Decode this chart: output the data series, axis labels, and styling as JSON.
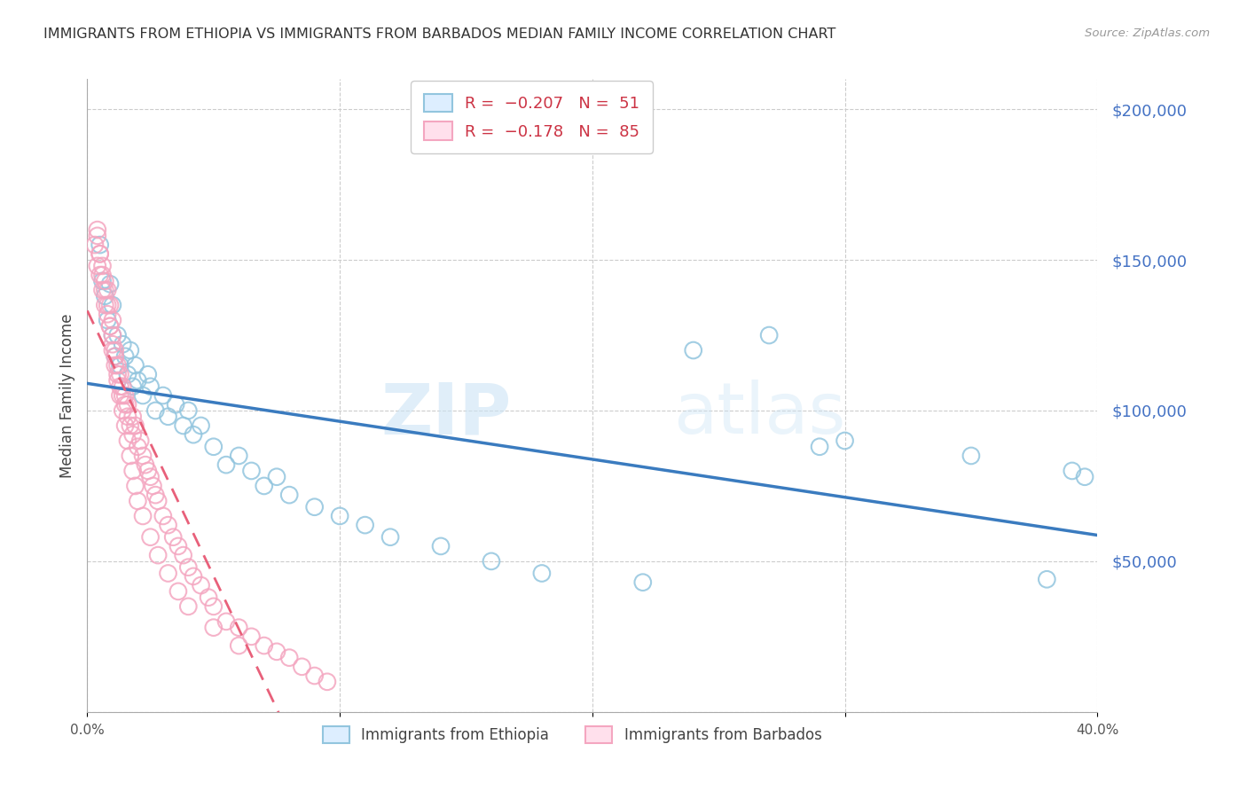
{
  "title": "IMMIGRANTS FROM ETHIOPIA VS IMMIGRANTS FROM BARBADOS MEDIAN FAMILY INCOME CORRELATION CHART",
  "source": "Source: ZipAtlas.com",
  "ylabel": "Median Family Income",
  "legend_label1": "Immigrants from Ethiopia",
  "legend_label2": "Immigrants from Barbados",
  "ethiopia_color": "#92c5de",
  "barbados_color": "#f4a6c0",
  "ethiopia_line_color": "#3a7bbf",
  "barbados_line_color": "#e8607a",
  "background_color": "#ffffff",
  "grid_color": "#cccccc",
  "watermark_zip": "ZIP",
  "watermark_atlas": "atlas",
  "xmin": 0.0,
  "xmax": 0.4,
  "ymin": 0,
  "ymax": 210000,
  "ethiopia_x": [
    0.005,
    0.006,
    0.007,
    0.008,
    0.009,
    0.01,
    0.01,
    0.011,
    0.012,
    0.013,
    0.014,
    0.015,
    0.016,
    0.017,
    0.018,
    0.019,
    0.02,
    0.022,
    0.024,
    0.025,
    0.027,
    0.03,
    0.032,
    0.035,
    0.038,
    0.04,
    0.042,
    0.045,
    0.05,
    0.055,
    0.06,
    0.065,
    0.07,
    0.075,
    0.08,
    0.09,
    0.1,
    0.11,
    0.12,
    0.14,
    0.16,
    0.18,
    0.22,
    0.24,
    0.27,
    0.29,
    0.3,
    0.35,
    0.38,
    0.39,
    0.395
  ],
  "ethiopia_y": [
    155000,
    143000,
    138000,
    130000,
    142000,
    125000,
    135000,
    118000,
    125000,
    115000,
    122000,
    118000,
    112000,
    120000,
    108000,
    115000,
    110000,
    105000,
    112000,
    108000,
    100000,
    105000,
    98000,
    102000,
    95000,
    100000,
    92000,
    95000,
    88000,
    82000,
    85000,
    80000,
    75000,
    78000,
    72000,
    68000,
    65000,
    62000,
    58000,
    55000,
    50000,
    46000,
    43000,
    120000,
    125000,
    88000,
    90000,
    85000,
    44000,
    80000,
    78000
  ],
  "barbados_x": [
    0.003,
    0.004,
    0.004,
    0.005,
    0.005,
    0.006,
    0.006,
    0.007,
    0.007,
    0.008,
    0.008,
    0.009,
    0.009,
    0.01,
    0.01,
    0.01,
    0.011,
    0.011,
    0.012,
    0.012,
    0.013,
    0.013,
    0.014,
    0.014,
    0.015,
    0.015,
    0.016,
    0.016,
    0.017,
    0.018,
    0.018,
    0.019,
    0.02,
    0.021,
    0.022,
    0.023,
    0.024,
    0.025,
    0.026,
    0.027,
    0.028,
    0.03,
    0.032,
    0.034,
    0.036,
    0.038,
    0.04,
    0.042,
    0.045,
    0.048,
    0.05,
    0.055,
    0.06,
    0.065,
    0.07,
    0.075,
    0.08,
    0.085,
    0.09,
    0.095,
    0.004,
    0.005,
    0.006,
    0.007,
    0.008,
    0.009,
    0.01,
    0.011,
    0.012,
    0.013,
    0.014,
    0.015,
    0.016,
    0.017,
    0.018,
    0.019,
    0.02,
    0.022,
    0.025,
    0.028,
    0.032,
    0.036,
    0.04,
    0.05,
    0.06
  ],
  "barbados_y": [
    155000,
    158000,
    148000,
    152000,
    145000,
    148000,
    140000,
    143000,
    135000,
    140000,
    132000,
    135000,
    128000,
    130000,
    122000,
    125000,
    118000,
    120000,
    115000,
    112000,
    108000,
    112000,
    105000,
    108000,
    102000,
    105000,
    98000,
    102000,
    95000,
    98000,
    92000,
    95000,
    88000,
    90000,
    85000,
    82000,
    80000,
    78000,
    75000,
    72000,
    70000,
    65000,
    62000,
    58000,
    55000,
    52000,
    48000,
    45000,
    42000,
    38000,
    35000,
    30000,
    28000,
    25000,
    22000,
    20000,
    18000,
    15000,
    12000,
    10000,
    160000,
    152000,
    145000,
    140000,
    135000,
    128000,
    120000,
    115000,
    110000,
    105000,
    100000,
    95000,
    90000,
    85000,
    80000,
    75000,
    70000,
    65000,
    58000,
    52000,
    46000,
    40000,
    35000,
    28000,
    22000
  ]
}
